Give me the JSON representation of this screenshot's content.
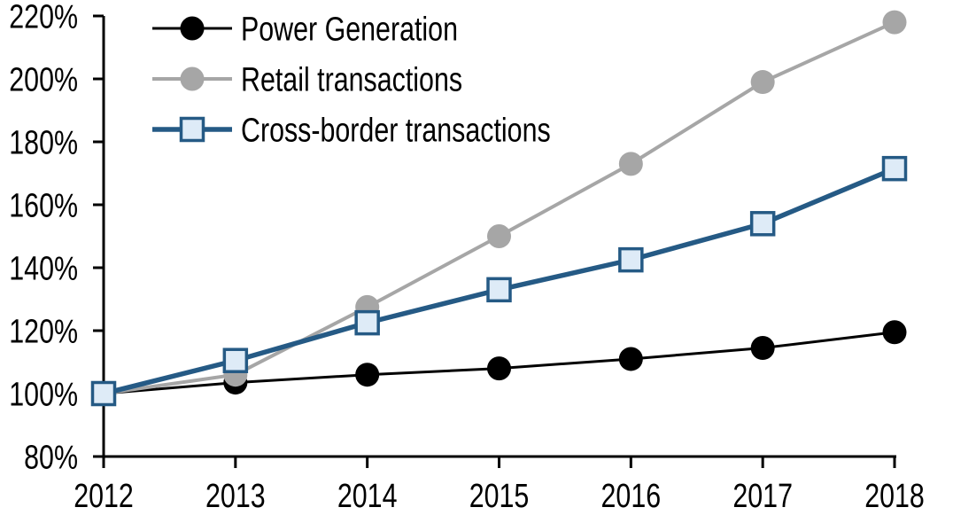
{
  "chart_data": {
    "type": "line",
    "title": "",
    "xlabel": "",
    "ylabel": "",
    "x": [
      "2012",
      "2013",
      "2014",
      "2015",
      "2016",
      "2017",
      "2018"
    ],
    "ylim": [
      80,
      220
    ],
    "y_tick_step": 20,
    "y_tick_labels": [
      "220%",
      "200%",
      "180%",
      "160%",
      "140%",
      "120%",
      "100%",
      "80%"
    ],
    "grid": false,
    "legend_position": "top-left-inside",
    "background_color": "#FFFFFF",
    "axis_color": "#000000",
    "series": [
      {
        "name": "Power Generation",
        "color": "#000000",
        "marker": "circle",
        "marker_fill": "#000000",
        "line_width": 3,
        "values": [
          100,
          103.5,
          106,
          108,
          111,
          114.5,
          119.5
        ]
      },
      {
        "name": "Retail transactions",
        "color": "#A6A6A6",
        "marker": "circle",
        "marker_fill": "#A6A6A6",
        "line_width": 4,
        "values": [
          100,
          106,
          127.5,
          150,
          173,
          199,
          218
        ]
      },
      {
        "name": "Cross-border transactions",
        "color": "#255A85",
        "marker": "square",
        "marker_fill": "#DEEBF7",
        "line_width": 5.5,
        "values": [
          100,
          110.5,
          122.5,
          133,
          142.5,
          154,
          171.5
        ]
      }
    ]
  }
}
